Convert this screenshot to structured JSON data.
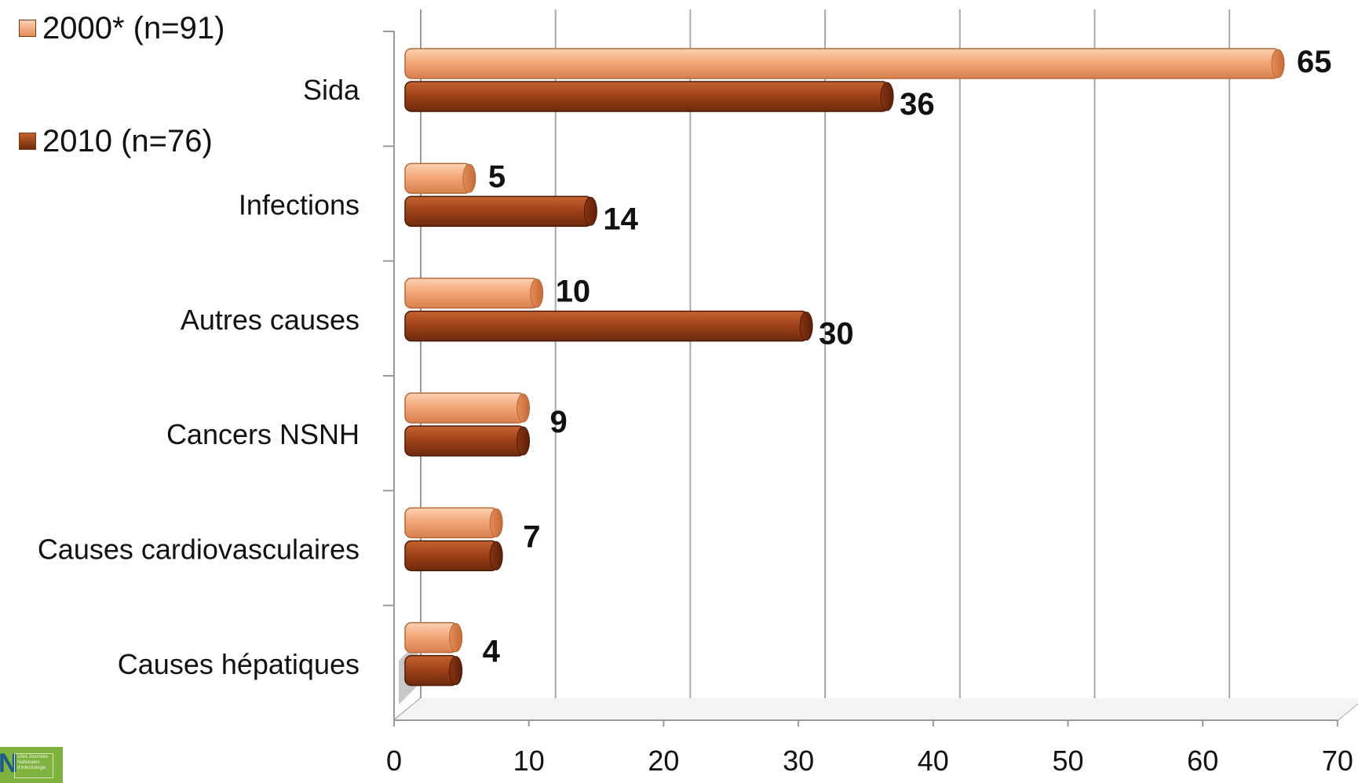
{
  "chart_data": {
    "type": "bar",
    "orientation": "horizontal",
    "style": "3d-cylinder",
    "categories": [
      "Sida",
      "Infections",
      "Autres causes",
      "Cancers NSNH",
      "Causes cardiovasculaires",
      "Causes hépatiques"
    ],
    "series": [
      {
        "name": "2000* (n=91)",
        "values": [
          65,
          5,
          10,
          9,
          7,
          4
        ],
        "color": "#f0a070"
      },
      {
        "name": "2010 (n=76)",
        "values": [
          36,
          14,
          30,
          9,
          7,
          4
        ],
        "color": "#a0431a"
      }
    ],
    "data_labels": [
      {
        "category": "Sida",
        "series": 0,
        "text": "65"
      },
      {
        "category": "Sida",
        "series": 1,
        "text": "36"
      },
      {
        "category": "Infections",
        "series": 0,
        "text": "5"
      },
      {
        "category": "Infections",
        "series": 1,
        "text": "14"
      },
      {
        "category": "Autres causes",
        "series": 0,
        "text": "10"
      },
      {
        "category": "Autres causes",
        "series": 1,
        "text": "30"
      },
      {
        "category": "Cancers NSNH",
        "series": 1,
        "text": "9"
      },
      {
        "category": "Causes cardiovasculaires",
        "series": 1,
        "text": "7"
      },
      {
        "category": "Causes hépatiques",
        "series": 1,
        "text": "4"
      }
    ],
    "x_ticks": [
      "0",
      "10",
      "20",
      "30",
      "40",
      "50",
      "60",
      "70"
    ],
    "xlim": [
      0,
      70
    ],
    "grid": true,
    "legend": "top-left"
  },
  "legend": {
    "items": [
      {
        "label": "2000* (n=91)",
        "color": "#f0a070"
      },
      {
        "label": "2010 (n=76)",
        "color": "#a0431a"
      }
    ]
  },
  "logo": {
    "mark": "N",
    "text": "18es Journées Nationales d'Infectiologie"
  }
}
